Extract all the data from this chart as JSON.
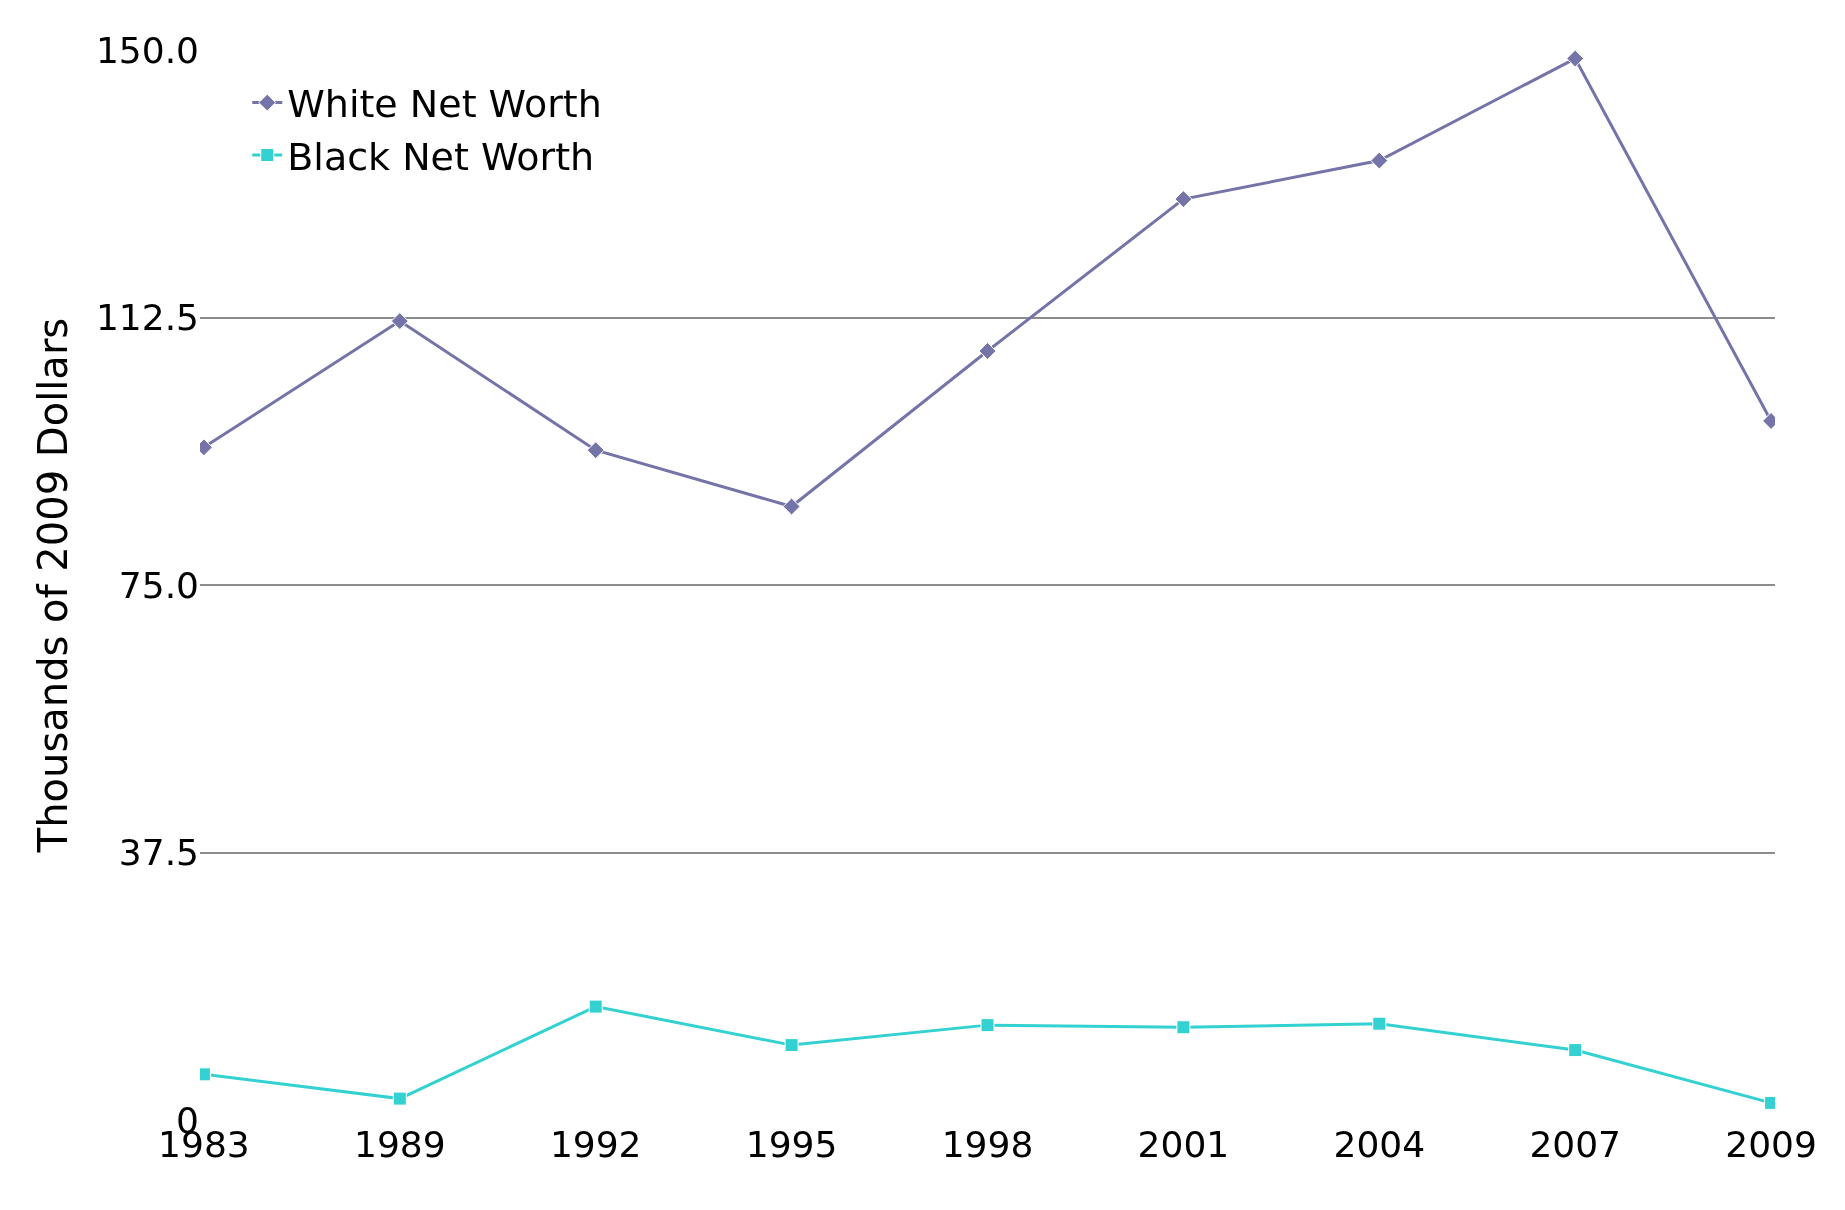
{
  "chart_data": {
    "type": "line",
    "ylabel": "Thousands of 2009 Dollars",
    "categories": [
      "1983",
      "1989",
      "1992",
      "1995",
      "1998",
      "2001",
      "2004",
      "2007",
      "2009"
    ],
    "series": [
      {
        "name": "White Net Worth",
        "color": "#7474a8",
        "marker": "diamond",
        "values": [
          94.3,
          112.0,
          93.9,
          86.0,
          107.8,
          129.1,
          134.5,
          148.8,
          98.0
        ]
      },
      {
        "name": "Black Net Worth",
        "color": "#33d1d1",
        "marker": "square",
        "values": [
          6.4,
          3.0,
          15.9,
          10.5,
          13.3,
          13.0,
          13.5,
          9.8,
          2.4
        ]
      }
    ],
    "ylim": [
      0,
      150
    ],
    "yticks": [
      0,
      {
        "value": 37.5,
        "label": "37.5"
      },
      {
        "value": 75,
        "label": "75.0"
      },
      {
        "value": 112.5,
        "label": "112.5"
      },
      {
        "value": 150,
        "label": "150.0"
      }
    ],
    "grid": "y",
    "legend": "top left",
    "line_style": "solid"
  }
}
